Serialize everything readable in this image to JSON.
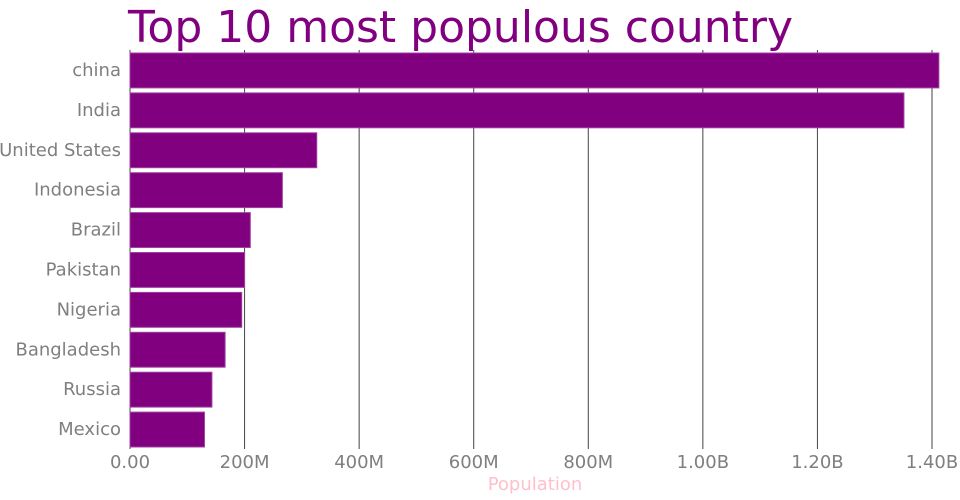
{
  "chart_data": {
    "type": "bar",
    "orientation": "horizontal",
    "title": "Top 10 most populous country",
    "xlabel": "Population",
    "ylabel": "",
    "categories": [
      "china",
      "India",
      "United States",
      "Indonesia",
      "Brazil",
      "Pakistan",
      "Nigeria",
      "Bangladesh",
      "Russia",
      "Mexico"
    ],
    "values": [
      1412000000,
      1351000000,
      326000000,
      266000000,
      210000000,
      200000000,
      195000000,
      166000000,
      143000000,
      130000000
    ],
    "xlim": [
      0,
      1400000000
    ],
    "xticks": [
      0,
      200000000,
      400000000,
      600000000,
      800000000,
      1000000000,
      1200000000,
      1400000000
    ],
    "xtick_labels": [
      "0.00",
      "200M",
      "400M",
      "600M",
      "800M",
      "1.00B",
      "1.20B",
      "1.40B"
    ],
    "grid": "vertical",
    "bar_color": "#800080"
  }
}
